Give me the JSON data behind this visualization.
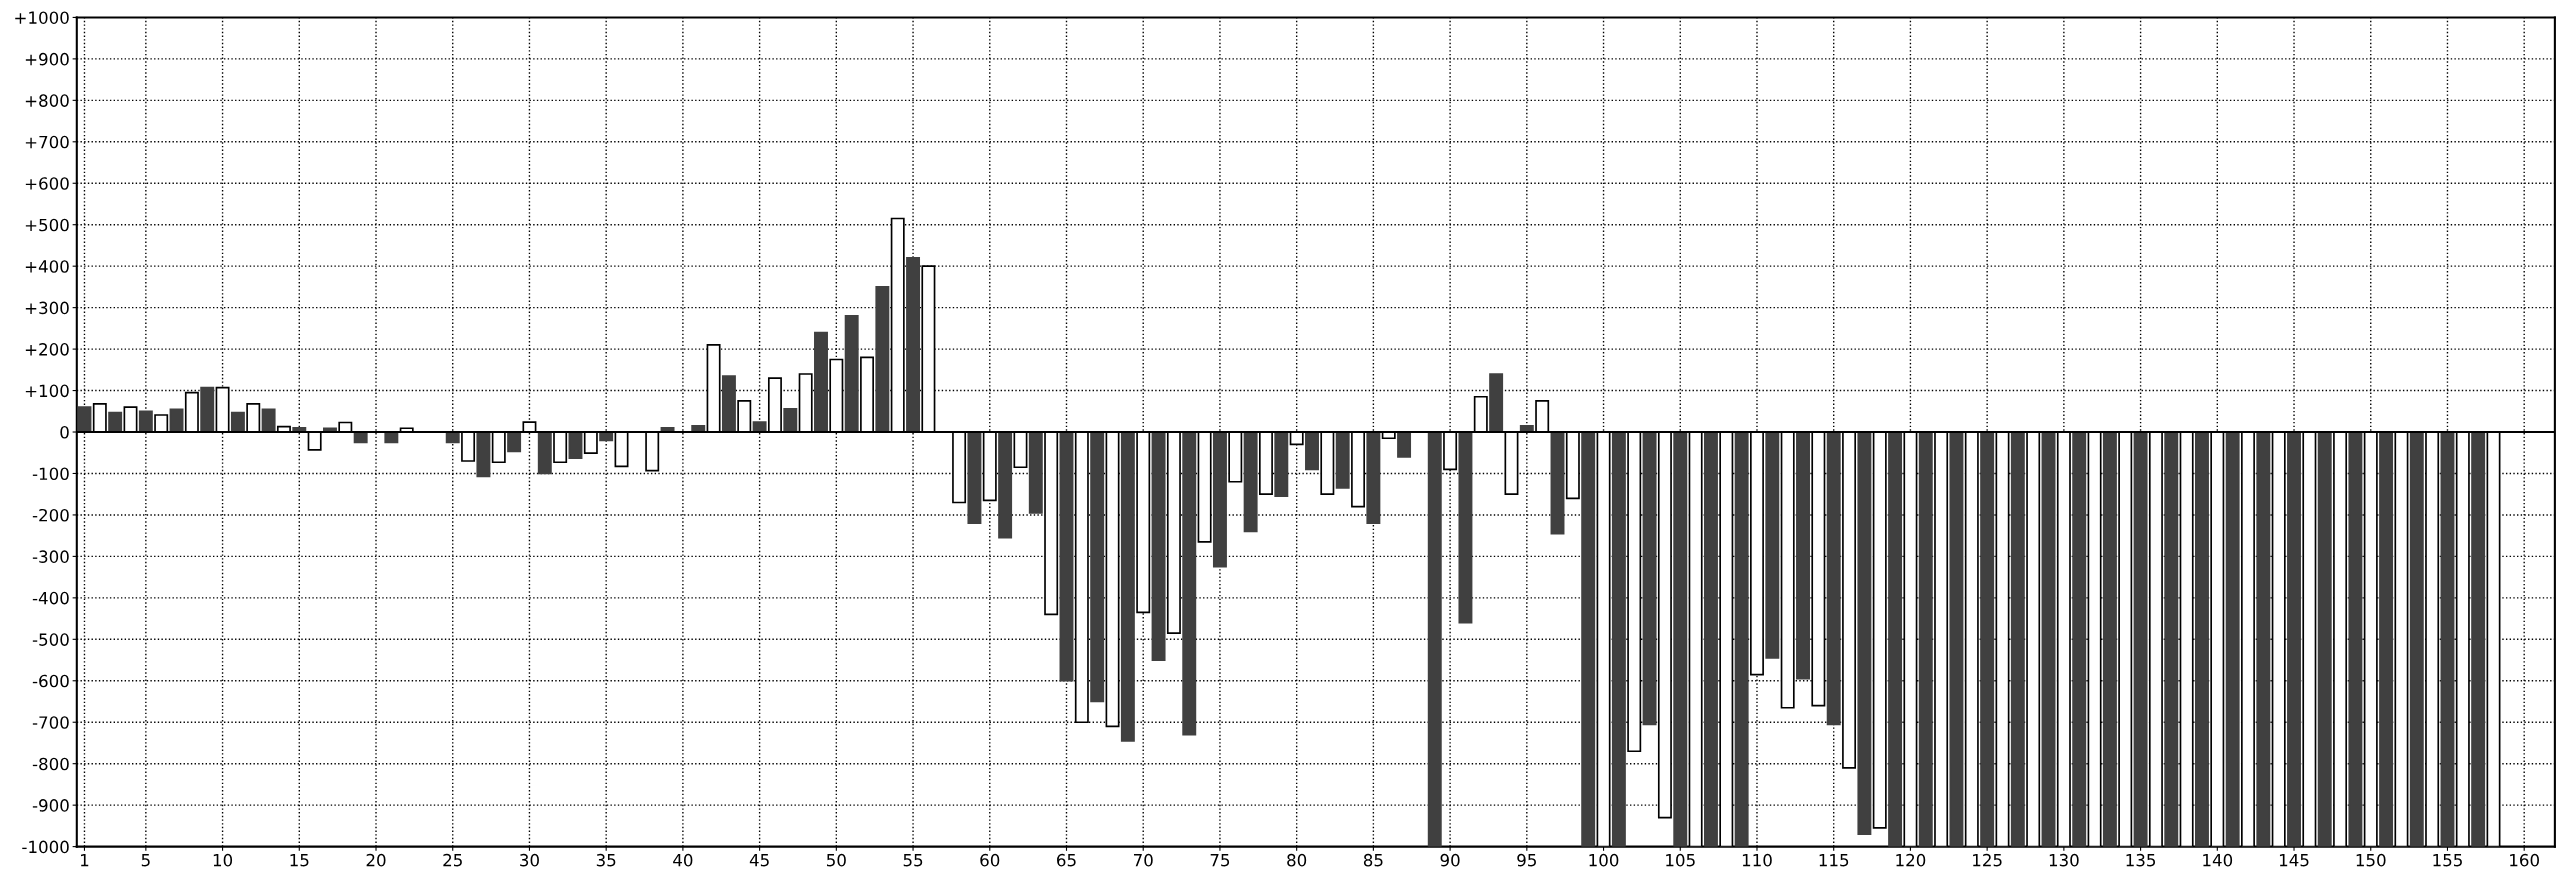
{
  "chart_data": {
    "type": "bar",
    "series": [
      {
        "color": "#404040",
        "x": [
          1,
          3,
          5,
          7,
          9,
          11,
          13,
          15,
          17,
          19,
          21,
          23,
          25,
          27,
          29,
          31,
          33,
          35,
          37,
          39,
          41,
          43,
          45,
          47,
          49,
          51,
          53,
          55,
          57,
          59,
          61,
          63,
          65,
          67,
          69,
          71,
          73,
          75,
          77,
          79,
          81,
          83,
          85,
          87,
          89,
          91,
          93,
          95,
          97,
          99,
          101,
          103,
          105,
          107,
          109,
          111,
          113,
          115,
          117,
          119,
          121,
          123,
          125,
          127,
          129,
          131,
          133,
          135,
          137,
          139,
          141,
          143,
          145,
          147,
          149,
          151,
          153,
          155,
          157
        ],
        "values": [
          60,
          47,
          50,
          55,
          107,
          47,
          55,
          10,
          9,
          -25,
          -25,
          0,
          -25,
          -107,
          -47,
          -100,
          -63,
          -20,
          0,
          10,
          15,
          135,
          24,
          56,
          240,
          280,
          350,
          420,
          0,
          -220,
          -255,
          -195,
          -600,
          -650,
          -745,
          -550,
          -730,
          -325,
          -240,
          -155,
          -90,
          -135,
          -220,
          -60,
          -1000,
          -460,
          140,
          15,
          -245,
          -1000,
          -1000,
          -705,
          -1000,
          -1000,
          -1000,
          -545,
          -595,
          -705,
          -970,
          -1000,
          -1000,
          -1000,
          -1000,
          -1000,
          -1000,
          -1000,
          -1000,
          -1000,
          -1000,
          -1000,
          -1000,
          -1000,
          -1000,
          -1000,
          -1000,
          -1000,
          -1000,
          -1000,
          -1000
        ]
      },
      {
        "color": "#ffffff",
        "x": [
          2,
          4,
          6,
          8,
          10,
          12,
          14,
          16,
          18,
          20,
          22,
          24,
          26,
          28,
          30,
          32,
          34,
          36,
          38,
          40,
          42,
          44,
          46,
          48,
          50,
          52,
          54,
          56,
          58,
          60,
          62,
          64,
          66,
          68,
          70,
          72,
          74,
          76,
          78,
          80,
          82,
          84,
          86,
          88,
          90,
          92,
          94,
          96,
          98,
          100,
          102,
          104,
          106,
          108,
          110,
          112,
          114,
          116,
          118,
          120,
          122,
          124,
          126,
          128,
          130,
          132,
          134,
          136,
          138,
          140,
          142,
          144,
          146,
          148,
          150,
          152,
          154,
          156,
          158
        ],
        "values": [
          68,
          60,
          41,
          95,
          107,
          68,
          13,
          -43,
          23,
          0,
          9,
          0,
          -70,
          -73,
          24,
          -73,
          -51,
          -83,
          -93,
          0,
          210,
          75,
          130,
          140,
          175,
          180,
          515,
          400,
          -170,
          -165,
          -85,
          -440,
          -700,
          -710,
          -435,
          -485,
          -265,
          -120,
          -150,
          -30,
          -150,
          -180,
          -15,
          0,
          -90,
          85,
          -150,
          75,
          -160,
          -1000,
          -770,
          -930,
          -1000,
          -1000,
          -585,
          -665,
          -660,
          -810,
          -955,
          -1000,
          -1000,
          -1000,
          -1000,
          -1000,
          -1000,
          -1000,
          -1000,
          -1000,
          -1000,
          -1000,
          -1000,
          -1000,
          -1000,
          -1000,
          -1000,
          -1000,
          -1000,
          -1000,
          -1000
        ]
      }
    ],
    "xlim": [
      0.5,
      162
    ],
    "xticks": [
      1,
      5,
      10,
      15,
      20,
      25,
      30,
      35,
      40,
      45,
      50,
      55,
      60,
      65,
      70,
      75,
      80,
      85,
      90,
      95,
      100,
      105,
      110,
      115,
      120,
      125,
      130,
      135,
      140,
      145,
      150,
      155,
      160
    ],
    "ylim": [
      -1000,
      1000
    ],
    "yticks": [
      {
        "value": -1000,
        "label": "-1000"
      },
      {
        "value": -900,
        "label": "-900"
      },
      {
        "value": -800,
        "label": "-800"
      },
      {
        "value": -700,
        "label": "-700"
      },
      {
        "value": -600,
        "label": "-600"
      },
      {
        "value": -500,
        "label": "-500"
      },
      {
        "value": -400,
        "label": "-400"
      },
      {
        "value": -300,
        "label": "-300"
      },
      {
        "value": -200,
        "label": "-200"
      },
      {
        "value": -100,
        "label": "-100"
      },
      0,
      {
        "value": 100,
        "label": "+100"
      },
      {
        "value": 200,
        "label": "+200"
      },
      {
        "value": 300,
        "label": "+300"
      },
      {
        "value": 400,
        "label": "+400"
      },
      {
        "value": 500,
        "label": "+500"
      },
      {
        "value": 600,
        "label": "+600"
      },
      {
        "value": 700,
        "label": "+700"
      },
      {
        "value": 800,
        "label": "+800"
      },
      {
        "value": 900,
        "label": "+900"
      },
      {
        "value": 1000,
        "label": "+1000"
      }
    ],
    "ref_lines": [
      {
        "axis": "y",
        "value": 0,
        "color": "#000000",
        "line_style": "solid"
      }
    ],
    "grid": true,
    "line_style": "dotted"
  }
}
